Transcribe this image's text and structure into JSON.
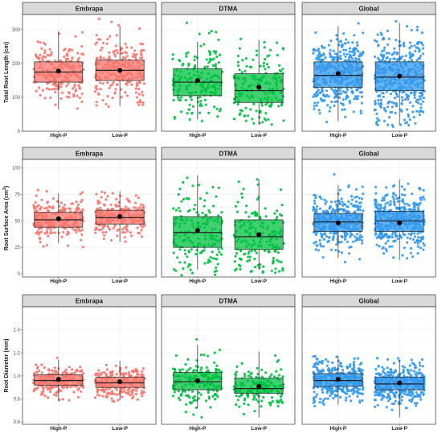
{
  "chart_data": {
    "type": "boxplot",
    "facets": [
      "Embrapa",
      "DTMA",
      "Global"
    ],
    "facet_colors": {
      "Embrapa": "#f8766d",
      "DTMA": "#00c040",
      "Global": "#3399ee"
    },
    "categories": [
      "High-P",
      "Low-P"
    ],
    "rows": [
      {
        "ylabel_main": "Total Root Length (cm)",
        "ylabel_sup": "",
        "ylabel_tail": "",
        "ylim": [
          0,
          345
        ],
        "yticks": [
          0,
          100,
          200,
          300
        ],
        "panels": [
          {
            "facet": "Embrapa",
            "n": 230,
            "boxes": [
              {
                "category": "High-P",
                "min": 65,
                "q1": 145,
                "median": 175,
                "q3": 205,
                "max": 295,
                "mean": 178,
                "pmin": 65,
                "pmax": 345
              },
              {
                "category": "Low-P",
                "min": 75,
                "q1": 150,
                "median": 180,
                "q3": 210,
                "max": 310,
                "mean": 180,
                "pmin": 70,
                "pmax": 335
              }
            ]
          },
          {
            "facet": "DTMA",
            "n": 175,
            "boxes": [
              {
                "category": "High-P",
                "min": 35,
                "q1": 105,
                "median": 145,
                "q3": 185,
                "max": 265,
                "mean": 150,
                "pmin": 30,
                "pmax": 330
              },
              {
                "category": "Low-P",
                "min": 20,
                "q1": 85,
                "median": 120,
                "q3": 170,
                "max": 270,
                "mean": 130,
                "pmin": 15,
                "pmax": 280
              }
            ]
          },
          {
            "facet": "Global",
            "n": 400,
            "boxes": [
              {
                "category": "High-P",
                "min": 30,
                "q1": 130,
                "median": 165,
                "q3": 205,
                "max": 310,
                "mean": 170,
                "pmin": 25,
                "pmax": 345
              },
              {
                "category": "Low-P",
                "min": 20,
                "q1": 120,
                "median": 160,
                "q3": 205,
                "max": 320,
                "mean": 163,
                "pmin": 10,
                "pmax": 335
              }
            ]
          }
        ]
      },
      {
        "ylabel_main": "Root Surface Area (cm",
        "ylabel_sup": "2",
        "ylabel_tail": ")",
        "ylim": [
          -3,
          108
        ],
        "yticks": [
          0,
          25,
          50,
          75,
          100
        ],
        "panels": [
          {
            "facet": "Embrapa",
            "n": 230,
            "boxes": [
              {
                "category": "High-P",
                "min": 29,
                "q1": 44,
                "median": 51,
                "q3": 58,
                "max": 76,
                "mean": 52,
                "pmin": 25,
                "pmax": 80
              },
              {
                "category": "Low-P",
                "min": 30,
                "q1": 47,
                "median": 53,
                "q3": 60,
                "max": 78,
                "mean": 54,
                "pmin": 28,
                "pmax": 78
              }
            ]
          },
          {
            "facet": "DTMA",
            "n": 175,
            "boxes": [
              {
                "category": "High-P",
                "min": 4,
                "q1": 25,
                "median": 39,
                "q3": 54,
                "max": 93,
                "mean": 41,
                "pmin": -3,
                "pmax": 105
              },
              {
                "category": "Low-P",
                "min": 4,
                "q1": 23,
                "median": 35,
                "q3": 51,
                "max": 89,
                "mean": 37,
                "pmin": 0,
                "pmax": 90
              }
            ]
          },
          {
            "facet": "Global",
            "n": 400,
            "boxes": [
              {
                "category": "High-P",
                "min": 15,
                "q1": 40,
                "median": 49,
                "q3": 57,
                "max": 84,
                "mean": 48,
                "pmin": 0,
                "pmax": 105
              },
              {
                "category": "Low-P",
                "min": 13,
                "q1": 40,
                "median": 50,
                "q3": 59,
                "max": 89,
                "mean": 48,
                "pmin": 0,
                "pmax": 92
              }
            ]
          }
        ]
      },
      {
        "ylabel_main": "Root Diameter (mm)",
        "ylabel_sup": "",
        "ylabel_tail": "",
        "ylim": [
          0.58,
          1.6
        ],
        "yticks": [
          0.6,
          0.8,
          1.0,
          1.2,
          1.4
        ],
        "ytick_labels": [
          "0.6",
          "0.8",
          "1.0",
          "1.2",
          "1.4"
        ],
        "panels": [
          {
            "facet": "Embrapa",
            "n": 230,
            "boxes": [
              {
                "category": "High-P",
                "min": 0.78,
                "q1": 0.92,
                "median": 0.96,
                "q3": 1.01,
                "max": 1.14,
                "mean": 0.97,
                "pmin": 0.78,
                "pmax": 1.16
              },
              {
                "category": "Low-P",
                "min": 0.79,
                "q1": 0.9,
                "median": 0.94,
                "q3": 0.99,
                "max": 1.13,
                "mean": 0.95,
                "pmin": 0.75,
                "pmax": 1.14
              }
            ]
          },
          {
            "facet": "DTMA",
            "n": 175,
            "boxes": [
              {
                "category": "High-P",
                "min": 0.72,
                "q1": 0.88,
                "median": 0.95,
                "q3": 1.03,
                "max": 1.27,
                "mean": 0.96,
                "pmin": 0.64,
                "pmax": 1.58
              },
              {
                "category": "Low-P",
                "min": 0.64,
                "q1": 0.85,
                "median": 0.89,
                "q3": 0.98,
                "max": 1.21,
                "mean": 0.91,
                "pmin": 0.6,
                "pmax": 1.27
              }
            ]
          },
          {
            "facet": "Global",
            "n": 400,
            "boxes": [
              {
                "category": "High-P",
                "min": 0.75,
                "q1": 0.91,
                "median": 0.96,
                "q3": 1.02,
                "max": 1.17,
                "mean": 0.97,
                "pmin": 0.64,
                "pmax": 1.58
              },
              {
                "category": "Low-P",
                "min": 0.64,
                "q1": 0.88,
                "median": 0.93,
                "q3": 0.99,
                "max": 1.14,
                "mean": 0.94,
                "pmin": 0.6,
                "pmax": 1.27
              }
            ]
          }
        ]
      }
    ]
  }
}
